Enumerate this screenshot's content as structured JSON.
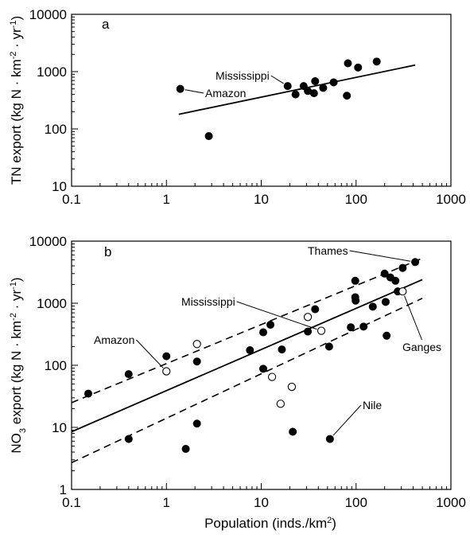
{
  "figure": {
    "x_axis_label": "Population (inds./km",
    "x_axis_label_sup": "2",
    "x_axis_label_end": ")",
    "x_tick_labels": [
      "0.1",
      "1",
      "10",
      "100",
      "1000"
    ]
  },
  "chart_data": [
    {
      "type": "scatter",
      "panel_label": "a",
      "xlabel": "Population (inds./km2)",
      "ylabel_parts": [
        "TN export (kg N · km",
        "-2",
        " · yr",
        "-1",
        ")"
      ],
      "x_scale": "log",
      "y_scale": "log",
      "xlim": [
        0.1,
        1000
      ],
      "ylim": [
        10,
        10000
      ],
      "y_tick_labels": [
        "10",
        "100",
        "1000",
        "10000"
      ],
      "grid": false,
      "legend": "none",
      "series": [
        {
          "marker": "filled-circle",
          "points": [
            [
              1.4,
              500
            ],
            [
              2.8,
              75
            ],
            [
              19,
              560
            ],
            [
              23,
              400
            ],
            [
              28,
              560
            ],
            [
              31,
              460
            ],
            [
              36,
              420
            ],
            [
              37,
              680
            ],
            [
              45,
              520
            ],
            [
              58,
              650
            ],
            [
              80,
              380
            ],
            [
              82,
              1400
            ],
            [
              105,
              1180
            ],
            [
              165,
              1500
            ]
          ]
        }
      ],
      "fit_line": {
        "style": "solid",
        "x": [
          1.35,
          420
        ],
        "y": [
          180,
          1300
        ]
      },
      "annotations": [
        {
          "text": "Mississippi",
          "x": 19,
          "y": 560
        },
        {
          "text": "Amazon",
          "x": 1.4,
          "y": 500
        }
      ]
    },
    {
      "type": "scatter",
      "panel_label": "b",
      "xlabel": "Population (inds./km2)",
      "ylabel_parts": [
        "NO",
        "3",
        " export (kg N · km",
        "-2",
        " · yr",
        "-1",
        ")"
      ],
      "x_scale": "log",
      "y_scale": "log",
      "xlim": [
        0.1,
        1000
      ],
      "ylim": [
        1,
        10000
      ],
      "y_tick_labels": [
        "1",
        "10",
        "100",
        "1000",
        "10000"
      ],
      "grid": false,
      "legend": "none",
      "series": [
        {
          "marker": "filled-circle",
          "points": [
            [
              0.15,
              35
            ],
            [
              0.4,
              72
            ],
            [
              0.4,
              6.5
            ],
            [
              1,
              140
            ],
            [
              1.6,
              4.5
            ],
            [
              2.1,
              115
            ],
            [
              2.1,
              11.5
            ],
            [
              7.6,
              175
            ],
            [
              10.5,
              340
            ],
            [
              10.5,
              88
            ],
            [
              12.5,
              450
            ],
            [
              16.5,
              180
            ],
            [
              21.5,
              8.5
            ],
            [
              31,
              350
            ],
            [
              37,
              800
            ],
            [
              52,
              200
            ],
            [
              53,
              6.5
            ],
            [
              88,
              410
            ],
            [
              98,
              2300
            ],
            [
              98,
              1250
            ],
            [
              99,
              1100
            ],
            [
              120,
              420
            ],
            [
              150,
              880
            ],
            [
              200,
              3000
            ],
            [
              205,
              1050
            ],
            [
              210,
              300
            ],
            [
              230,
              2600
            ],
            [
              260,
              2300
            ],
            [
              275,
              1550
            ],
            [
              310,
              3700
            ],
            [
              420,
              4600
            ]
          ]
        },
        {
          "marker": "open-circle",
          "points": [
            [
              1,
              80
            ],
            [
              2.1,
              220
            ],
            [
              13,
              65
            ],
            [
              16,
              24
            ],
            [
              21,
              45
            ],
            [
              31,
              600
            ],
            [
              43,
              360
            ],
            [
              310,
              1550
            ]
          ]
        }
      ],
      "fit_line": {
        "style": "solid",
        "x": [
          0.1,
          500
        ],
        "y": [
          8.5,
          2400
        ]
      },
      "confidence_bands": [
        {
          "style": "dashed",
          "x": [
            0.1,
            500
          ],
          "y": [
            25,
            5300
          ]
        },
        {
          "style": "dashed",
          "x": [
            0.1,
            500
          ],
          "y": [
            2.7,
            1200
          ]
        }
      ],
      "annotations": [
        {
          "text": "Thames",
          "x": 420,
          "y": 4600
        },
        {
          "text": "Mississippi",
          "x": 43,
          "y": 360
        },
        {
          "text": "Amazon",
          "x": 1,
          "y": 80
        },
        {
          "text": "Ganges",
          "x": 310,
          "y": 1550
        },
        {
          "text": "Nile",
          "x": 53,
          "y": 6.5
        }
      ]
    }
  ]
}
